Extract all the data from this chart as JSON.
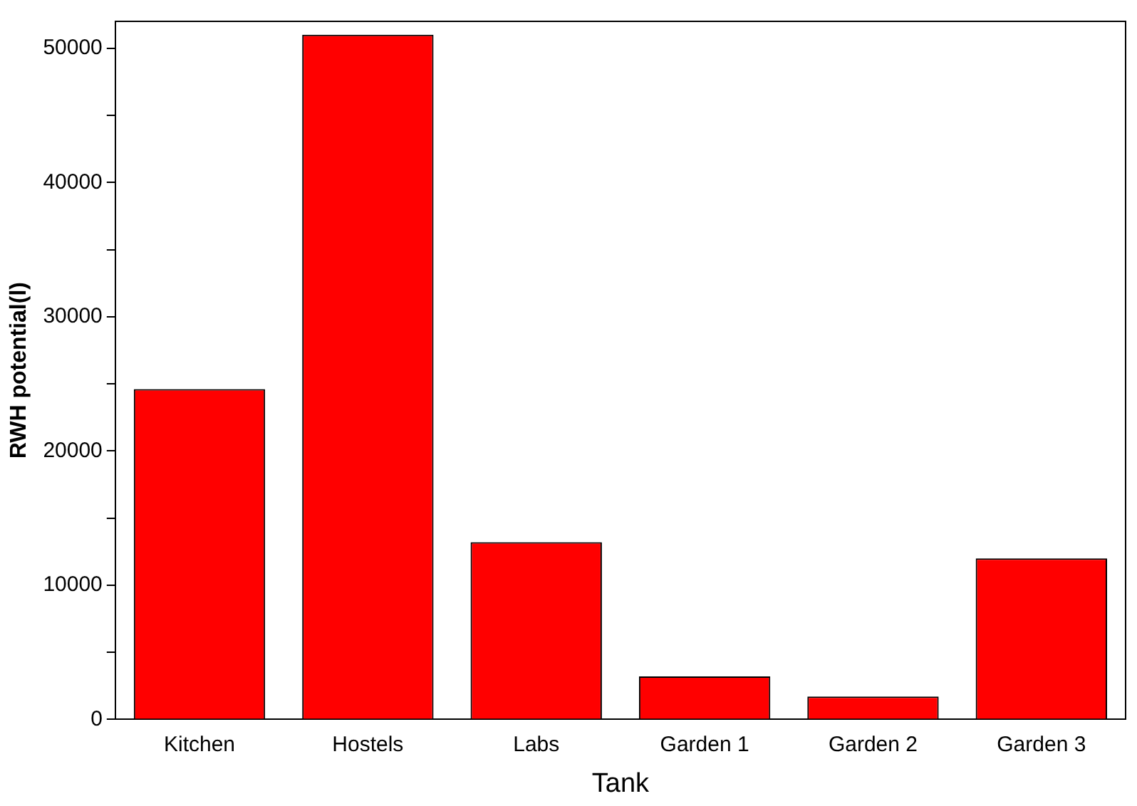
{
  "chart_data": {
    "type": "bar",
    "xlabel": "Tank",
    "ylabel": "RWH potential(l)",
    "categories": [
      "Kitchen",
      "Hostels",
      "Labs",
      "Garden 1",
      "Garden 2",
      "Garden 3"
    ],
    "values": [
      24600,
      51000,
      13200,
      3200,
      1700,
      12000
    ],
    "color": "#ff0000",
    "ylim": [
      0,
      52000
    ],
    "yticks": [
      0,
      {
        "value": 5000,
        "label": null
      },
      10000,
      {
        "value": 15000,
        "label": null
      },
      20000,
      {
        "value": 25000,
        "label": null
      },
      30000,
      {
        "value": 35000,
        "label": null
      },
      40000,
      {
        "value": 45000,
        "label": null
      },
      50000
    ],
    "grid": false,
    "legend": false
  }
}
